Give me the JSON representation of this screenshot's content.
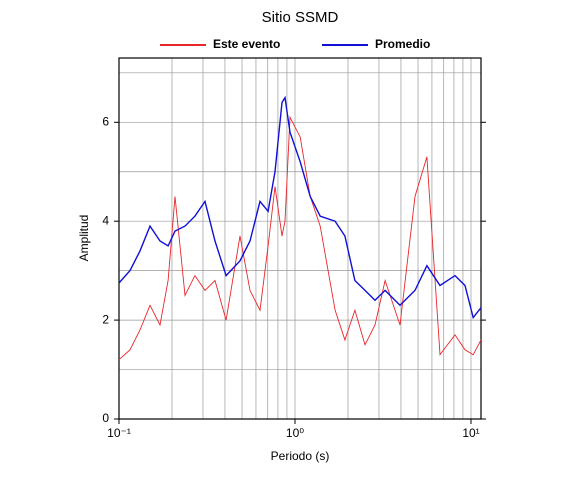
{
  "chart_data": {
    "type": "line",
    "title": "Sitio SSMD",
    "x_label": "Periodo (s)",
    "y_label": "Amplitud",
    "log_x": true,
    "grid": true,
    "x": [
      0.1,
      0.1155,
      0.1316,
      0.15,
      0.171,
      0.19,
      0.208,
      0.237,
      0.27,
      0.308,
      0.351,
      0.406,
      0.487,
      0.555,
      0.633,
      0.703,
      0.77,
      0.844,
      0.877,
      0.937,
      1.07,
      1.22,
      1.39,
      1.69,
      1.92,
      2.19,
      2.5,
      2.85,
      3.25,
      3.95,
      4.81,
      5.62,
      6.67,
      8.11,
      9.25,
      10.3,
      11.4
    ],
    "series": [
      {
        "name": "Este evento",
        "color": "#e8262a",
        "values": [
          1.2,
          1.4,
          1.8,
          2.3,
          1.9,
          2.8,
          4.5,
          2.5,
          2.9,
          2.6,
          2.8,
          2.0,
          3.7,
          2.6,
          2.2,
          3.5,
          4.7,
          3.7,
          4.0,
          6.1,
          5.7,
          4.5,
          3.9,
          2.2,
          1.6,
          2.2,
          1.5,
          1.9,
          2.8,
          1.9,
          4.5,
          5.3,
          1.3,
          1.7,
          1.4,
          1.3,
          1.6
        ]
      },
      {
        "name": "Promedio",
        "color": "#1010d8",
        "values": [
          2.75,
          3.0,
          3.4,
          3.9,
          3.6,
          3.5,
          3.8,
          3.9,
          4.1,
          4.4,
          3.6,
          2.9,
          3.2,
          3.6,
          4.4,
          4.2,
          5.0,
          6.4,
          6.5,
          5.8,
          5.2,
          4.5,
          4.1,
          4.0,
          3.7,
          2.8,
          2.6,
          2.4,
          2.6,
          2.3,
          2.6,
          3.1,
          2.7,
          2.9,
          2.7,
          2.05,
          2.25
        ]
      }
    ],
    "xlim": [
      0.1,
      11.4
    ],
    "ylim": [
      0,
      7.3
    ],
    "xticks": [
      {
        "value": 0.1,
        "label": "10⁻¹"
      },
      {
        "value": 1,
        "label": "10⁰"
      },
      {
        "value": 10,
        "label": "10¹"
      }
    ],
    "yticks": [
      0,
      2,
      4,
      6
    ],
    "xgrid": [
      0.2,
      0.3,
      0.4,
      0.5,
      0.6,
      0.7,
      0.8,
      0.9,
      1,
      2,
      3,
      4,
      5,
      6,
      7,
      8,
      9,
      10
    ],
    "ygrid": [
      1,
      2,
      3,
      4,
      5,
      6,
      7
    ]
  }
}
